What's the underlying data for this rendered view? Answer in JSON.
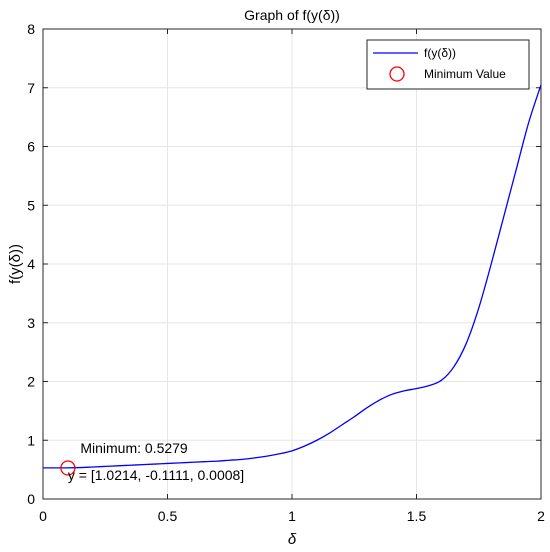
{
  "chart_data": {
    "type": "line",
    "title": "Graph of f(y(δ))",
    "xlabel": "δ",
    "ylabel": "f(y(δ))",
    "xlim": [
      0,
      2
    ],
    "ylim": [
      0,
      8
    ],
    "xticks": [
      0,
      0.5,
      1,
      1.5,
      2
    ],
    "xtick_labels": [
      "0",
      "0.5",
      "1",
      "1.5",
      "2"
    ],
    "yticks": [
      0,
      1,
      2,
      3,
      4,
      5,
      6,
      7,
      8
    ],
    "ytick_labels": [
      "0",
      "1",
      "2",
      "3",
      "4",
      "5",
      "6",
      "7",
      "8"
    ],
    "grid": true,
    "legend_position": "top-right",
    "series": [
      {
        "name": "f(y(δ))",
        "color": "#0000ff",
        "x": [
          0,
          0.05,
          0.1,
          0.15,
          0.2,
          0.25,
          0.3,
          0.35,
          0.4,
          0.45,
          0.5,
          0.55,
          0.6,
          0.65,
          0.7,
          0.75,
          0.8,
          0.85,
          0.9,
          0.95,
          1.0,
          1.05,
          1.1,
          1.15,
          1.2,
          1.25,
          1.3,
          1.35,
          1.4,
          1.45,
          1.5,
          1.55,
          1.6,
          1.65,
          1.7,
          1.75,
          1.8,
          1.85,
          1.9,
          1.95,
          2.0
        ],
        "y": [
          0.53,
          0.53,
          0.53,
          0.535,
          0.545,
          0.555,
          0.565,
          0.575,
          0.585,
          0.595,
          0.605,
          0.615,
          0.625,
          0.635,
          0.645,
          0.66,
          0.675,
          0.7,
          0.73,
          0.77,
          0.82,
          0.9,
          1.0,
          1.12,
          1.26,
          1.4,
          1.55,
          1.68,
          1.78,
          1.84,
          1.88,
          1.93,
          2.02,
          2.25,
          2.65,
          3.25,
          4.0,
          4.8,
          5.6,
          6.4,
          7.05
        ]
      },
      {
        "name": "Minimum Value",
        "color": "#ff0000",
        "marker": "circle",
        "x": [
          0.1
        ],
        "y": [
          0.5279
        ]
      }
    ],
    "annotations": [
      {
        "text": "Minimum: 0.5279",
        "x": 0.15,
        "y": 0.78
      },
      {
        "text": "y = [1.0214, -0.1111, 0.0008]",
        "x": 0.1,
        "y": 0.32
      }
    ]
  }
}
